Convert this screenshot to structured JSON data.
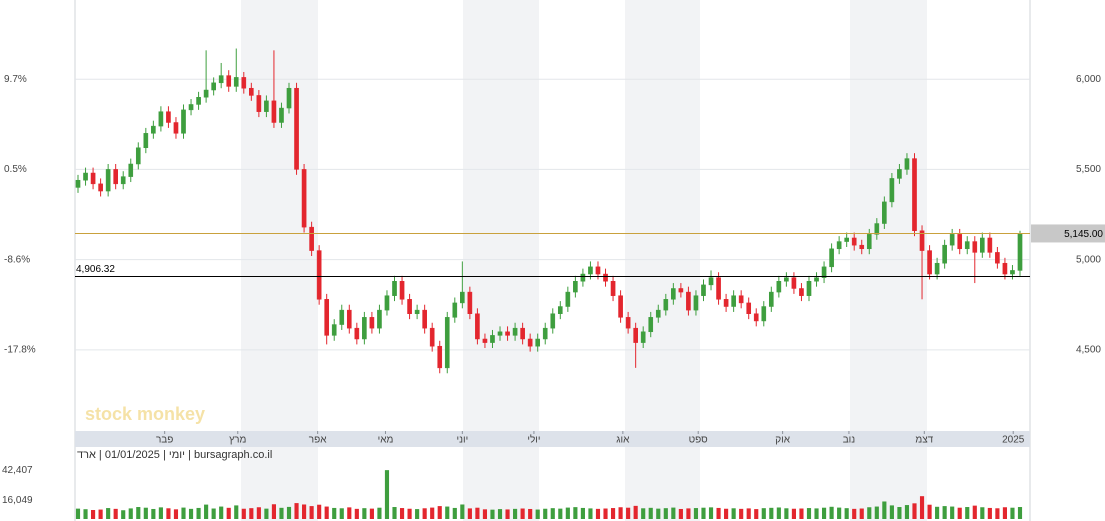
{
  "chart_data": {
    "type": "candlestick",
    "caption": "יומי | 01/01/2025 | ארד | bursagraph.co.il",
    "watermark": "stock monkey",
    "up_color": "#3e9e3e",
    "down_color": "#e3262e",
    "xlim": [
      0,
      125
    ],
    "xticks": [
      {
        "value": 11.5,
        "label": "פבר"
      },
      {
        "value": 21.2,
        "label": "מרץ"
      },
      {
        "value": 31.8,
        "label": "אפר"
      },
      {
        "value": 40.8,
        "label": "מאי"
      },
      {
        "value": 51,
        "label": "יוני"
      },
      {
        "value": 60.5,
        "label": "יולי"
      },
      {
        "value": 72.3,
        "label": "אוג"
      },
      {
        "value": 82.3,
        "label": "ספט"
      },
      {
        "value": 93.5,
        "label": "אוק"
      },
      {
        "value": 102.3,
        "label": "נוב"
      },
      {
        "value": 112.3,
        "label": "דצמ"
      },
      {
        "value": 124.1,
        "label": "2025"
      }
    ],
    "ylim": [
      4050,
      6439
    ],
    "yticks": [
      {
        "value": 6000,
        "label": "6,000"
      },
      {
        "value": 5500,
        "label": "5,500"
      },
      {
        "value": 5000,
        "label": "5,000"
      },
      {
        "value": 4500,
        "label": "4,500"
      }
    ],
    "left_ticks": [
      {
        "value": 6000,
        "label": "9.7%"
      },
      {
        "value": 5500,
        "label": "0.5%"
      },
      {
        "value": 5000,
        "label": "-8.6%"
      },
      {
        "value": 4500,
        "label": "-17.8%"
      }
    ],
    "lines": [
      {
        "value": 5145,
        "label": "5,145.00",
        "color": "#c9a13c"
      },
      {
        "value": 4906.32,
        "label": "4,906.32",
        "color": "#000000"
      }
    ],
    "volume_lim": [
      0,
      46000
    ],
    "volume_ticks": [
      {
        "value": 42407,
        "label": "42,407"
      },
      {
        "value": 16049,
        "label": "16,049"
      }
    ],
    "candles": [
      [
        5400,
        5470,
        5370,
        5440
      ],
      [
        5440,
        5510,
        5410,
        5480
      ],
      [
        5480,
        5510,
        5390,
        5420
      ],
      [
        5420,
        5450,
        5350,
        5380
      ],
      [
        5380,
        5530,
        5350,
        5500
      ],
      [
        5500,
        5530,
        5390,
        5420
      ],
      [
        5420,
        5490,
        5390,
        5460
      ],
      [
        5460,
        5560,
        5430,
        5530
      ],
      [
        5530,
        5650,
        5500,
        5620
      ],
      [
        5620,
        5730,
        5590,
        5700
      ],
      [
        5700,
        5770,
        5670,
        5740
      ],
      [
        5740,
        5850,
        5710,
        5820
      ],
      [
        5820,
        5850,
        5730,
        5760
      ],
      [
        5760,
        5790,
        5670,
        5700
      ],
      [
        5700,
        5860,
        5670,
        5830
      ],
      [
        5830,
        5890,
        5800,
        5860
      ],
      [
        5860,
        5930,
        5830,
        5900
      ],
      [
        5900,
        6160,
        5870,
        5940
      ],
      [
        5940,
        6010,
        5910,
        5980
      ],
      [
        5980,
        6090,
        5950,
        6020
      ],
      [
        6020,
        6050,
        5930,
        5960
      ],
      [
        5960,
        6170,
        5930,
        6010
      ],
      [
        6010,
        6040,
        5920,
        5950
      ],
      [
        5950,
        5980,
        5880,
        5910
      ],
      [
        5910,
        5940,
        5790,
        5820
      ],
      [
        5820,
        5910,
        5790,
        5880
      ],
      [
        5880,
        6160,
        5730,
        5760
      ],
      [
        5760,
        5870,
        5730,
        5840
      ],
      [
        5840,
        5980,
        5810,
        5950
      ],
      [
        5950,
        5980,
        5470,
        5500
      ],
      [
        5500,
        5530,
        5150,
        5180
      ],
      [
        5180,
        5210,
        5020,
        5050
      ],
      [
        5050,
        5080,
        4750,
        4780
      ],
      [
        4780,
        4810,
        4530,
        4580
      ],
      [
        4580,
        4670,
        4550,
        4640
      ],
      [
        4640,
        4750,
        4610,
        4720
      ],
      [
        4720,
        4750,
        4590,
        4620
      ],
      [
        4620,
        4650,
        4530,
        4560
      ],
      [
        4560,
        4710,
        4530,
        4680
      ],
      [
        4680,
        4710,
        4590,
        4620
      ],
      [
        4620,
        4750,
        4590,
        4720
      ],
      [
        4720,
        4830,
        4690,
        4800
      ],
      [
        4800,
        4910,
        4770,
        4880
      ],
      [
        4880,
        4910,
        4750,
        4780
      ],
      [
        4780,
        4810,
        4670,
        4700
      ],
      [
        4700,
        4750,
        4670,
        4720
      ],
      [
        4720,
        4750,
        4590,
        4620
      ],
      [
        4620,
        4650,
        4490,
        4520
      ],
      [
        4520,
        4550,
        4370,
        4400
      ],
      [
        4400,
        4710,
        4370,
        4680
      ],
      [
        4680,
        4790,
        4650,
        4760
      ],
      [
        4760,
        4990,
        4730,
        4820
      ],
      [
        4820,
        4850,
        4670,
        4700
      ],
      [
        4700,
        4730,
        4530,
        4560
      ],
      [
        4560,
        4590,
        4510,
        4540
      ],
      [
        4540,
        4610,
        4510,
        4580
      ],
      [
        4580,
        4630,
        4550,
        4600
      ],
      [
        4600,
        4630,
        4550,
        4580
      ],
      [
        4580,
        4650,
        4550,
        4620
      ],
      [
        4620,
        4650,
        4530,
        4560
      ],
      [
        4560,
        4590,
        4490,
        4520
      ],
      [
        4520,
        4590,
        4490,
        4560
      ],
      [
        4560,
        4650,
        4530,
        4620
      ],
      [
        4620,
        4730,
        4590,
        4700
      ],
      [
        4700,
        4770,
        4670,
        4740
      ],
      [
        4740,
        4850,
        4710,
        4820
      ],
      [
        4820,
        4910,
        4790,
        4880
      ],
      [
        4880,
        4950,
        4850,
        4920
      ],
      [
        4920,
        4990,
        4890,
        4960
      ],
      [
        4960,
        4990,
        4890,
        4920
      ],
      [
        4920,
        4950,
        4850,
        4880
      ],
      [
        4880,
        4910,
        4770,
        4800
      ],
      [
        4800,
        4830,
        4650,
        4680
      ],
      [
        4680,
        4710,
        4590,
        4620
      ],
      [
        4620,
        4650,
        4400,
        4540
      ],
      [
        4540,
        4630,
        4510,
        4600
      ],
      [
        4600,
        4710,
        4570,
        4680
      ],
      [
        4680,
        4750,
        4650,
        4720
      ],
      [
        4720,
        4810,
        4690,
        4780
      ],
      [
        4780,
        4870,
        4750,
        4840
      ],
      [
        4840,
        4870,
        4790,
        4820
      ],
      [
        4820,
        4850,
        4690,
        4720
      ],
      [
        4720,
        4830,
        4690,
        4800
      ],
      [
        4800,
        4890,
        4770,
        4860
      ],
      [
        4860,
        4940,
        4830,
        4900
      ],
      [
        4900,
        4930,
        4750,
        4780
      ],
      [
        4780,
        4810,
        4710,
        4740
      ],
      [
        4740,
        4830,
        4710,
        4800
      ],
      [
        4800,
        4830,
        4730,
        4760
      ],
      [
        4760,
        4790,
        4670,
        4700
      ],
      [
        4700,
        4730,
        4630,
        4660
      ],
      [
        4660,
        4770,
        4630,
        4740
      ],
      [
        4740,
        4850,
        4710,
        4820
      ],
      [
        4820,
        4910,
        4790,
        4880
      ],
      [
        4880,
        4930,
        4850,
        4900
      ],
      [
        4900,
        4930,
        4810,
        4840
      ],
      [
        4840,
        4870,
        4770,
        4800
      ],
      [
        4800,
        4910,
        4770,
        4880
      ],
      [
        4880,
        4930,
        4850,
        4900
      ],
      [
        4900,
        4990,
        4870,
        4960
      ],
      [
        4960,
        5090,
        4930,
        5060
      ],
      [
        5060,
        5130,
        5030,
        5100
      ],
      [
        5100,
        5150,
        5070,
        5120
      ],
      [
        5120,
        5150,
        5050,
        5080
      ],
      [
        5080,
        5110,
        5030,
        5060
      ],
      [
        5060,
        5170,
        5030,
        5140
      ],
      [
        5140,
        5230,
        5110,
        5200
      ],
      [
        5200,
        5350,
        5170,
        5320
      ],
      [
        5320,
        5480,
        5290,
        5450
      ],
      [
        5450,
        5530,
        5420,
        5500
      ],
      [
        5500,
        5590,
        5470,
        5560
      ],
      [
        5560,
        5590,
        5130,
        5160
      ],
      [
        5160,
        5190,
        4780,
        5050
      ],
      [
        5050,
        5080,
        4890,
        4920
      ],
      [
        4920,
        5010,
        4890,
        4980
      ],
      [
        4980,
        5110,
        4950,
        5080
      ],
      [
        5080,
        5170,
        5050,
        5140
      ],
      [
        5140,
        5170,
        5030,
        5060
      ],
      [
        5060,
        5130,
        5030,
        5100
      ],
      [
        5100,
        5130,
        4870,
        5040
      ],
      [
        5040,
        5150,
        5010,
        5120
      ],
      [
        5120,
        5150,
        5010,
        5040
      ],
      [
        5040,
        5070,
        4950,
        4980
      ],
      [
        4980,
        5010,
        4890,
        4920
      ],
      [
        4920,
        4970,
        4890,
        4940
      ],
      [
        4940,
        5160,
        4910,
        5145
      ]
    ],
    "volumes": [
      9000,
      8500,
      7800,
      8200,
      9500,
      8800,
      7600,
      9200,
      10400,
      9800,
      8700,
      10100,
      9300,
      8400,
      9900,
      8800,
      9600,
      12500,
      9100,
      10800,
      9700,
      11800,
      8900,
      9400,
      10200,
      9000,
      12800,
      9700,
      10500,
      13800,
      12600,
      11200,
      12400,
      10800,
      9600,
      9300,
      10100,
      8800,
      9400,
      9000,
      9800,
      42407,
      10400,
      9500,
      8900,
      8600,
      9300,
      9900,
      11200,
      10800,
      9600,
      12600,
      9200,
      9800,
      8400,
      8100,
      8600,
      8300,
      8800,
      9100,
      8700,
      8200,
      8900,
      9400,
      9000,
      9900,
      10300,
      9600,
      9200,
      8800,
      9100,
      9500,
      10200,
      9800,
      11400,
      9300,
      9700,
      9000,
      9400,
      9900,
      8700,
      9200,
      9500,
      9800,
      10100,
      9600,
      8900,
      9300,
      8800,
      9200,
      8600,
      9400,
      9700,
      10000,
      9300,
      8900,
      9100,
      9500,
      9200,
      9800,
      10600,
      9900,
      9400,
      8800,
      9100,
      10200,
      10800,
      15200,
      11800,
      10400,
      12100,
      13600,
      19800,
      12400,
      10600,
      11200,
      10800,
      9800,
      10400,
      11600,
      10200,
      9600,
      9300,
      10200,
      9800,
      10400
    ]
  }
}
